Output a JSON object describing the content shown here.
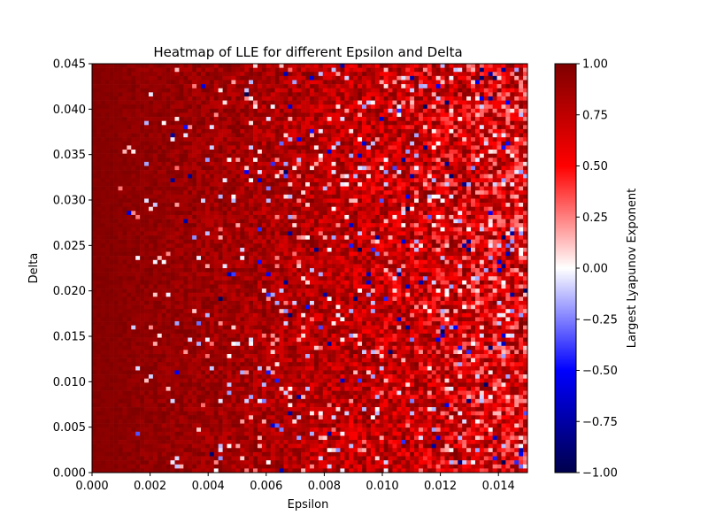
{
  "chart_data": {
    "type": "heatmap",
    "title": "Heatmap of LLE for different Epsilon and Delta",
    "xlabel": "Epsilon",
    "ylabel": "Delta",
    "colorbar_label": "Largest Lyapunov Exponent",
    "colormap": "seismic",
    "colormap_stops": [
      "#00004c",
      "#0000ff",
      "#ffffff",
      "#ff0000",
      "#7f0000"
    ],
    "xlim": [
      0,
      0.015
    ],
    "ylim": [
      0,
      0.045
    ],
    "clim": [
      -1.0,
      1.0
    ],
    "xticks": [
      {
        "value": 0.0,
        "label": "0.000"
      },
      {
        "value": 0.002,
        "label": "0.002"
      },
      {
        "value": 0.004,
        "label": "0.004"
      },
      {
        "value": 0.006,
        "label": "0.006"
      },
      {
        "value": 0.008,
        "label": "0.008"
      },
      {
        "value": 0.01,
        "label": "0.010"
      },
      {
        "value": 0.012,
        "label": "0.012"
      },
      {
        "value": 0.014,
        "label": "0.014"
      }
    ],
    "yticks": [
      {
        "value": 0.0,
        "label": "0.000"
      },
      {
        "value": 0.005,
        "label": "0.005"
      },
      {
        "value": 0.01,
        "label": "0.010"
      },
      {
        "value": 0.015,
        "label": "0.015"
      },
      {
        "value": 0.02,
        "label": "0.020"
      },
      {
        "value": 0.025,
        "label": "0.025"
      },
      {
        "value": 0.03,
        "label": "0.030"
      },
      {
        "value": 0.035,
        "label": "0.035"
      },
      {
        "value": 0.04,
        "label": "0.040"
      },
      {
        "value": 0.045,
        "label": "0.045"
      }
    ],
    "cticks": [
      {
        "value": 1.0,
        "label": "1.00"
      },
      {
        "value": 0.75,
        "label": "0.75"
      },
      {
        "value": 0.5,
        "label": "0.50"
      },
      {
        "value": 0.25,
        "label": "0.25"
      },
      {
        "value": 0.0,
        "label": "0.00"
      },
      {
        "value": -0.25,
        "label": "−0.25"
      },
      {
        "value": -0.5,
        "label": "−0.50"
      },
      {
        "value": -0.75,
        "label": "−0.75"
      },
      {
        "value": -1.0,
        "label": "−1.00"
      }
    ],
    "grid": {
      "cols": 100,
      "rows": 100,
      "seed": 12345
    }
  }
}
